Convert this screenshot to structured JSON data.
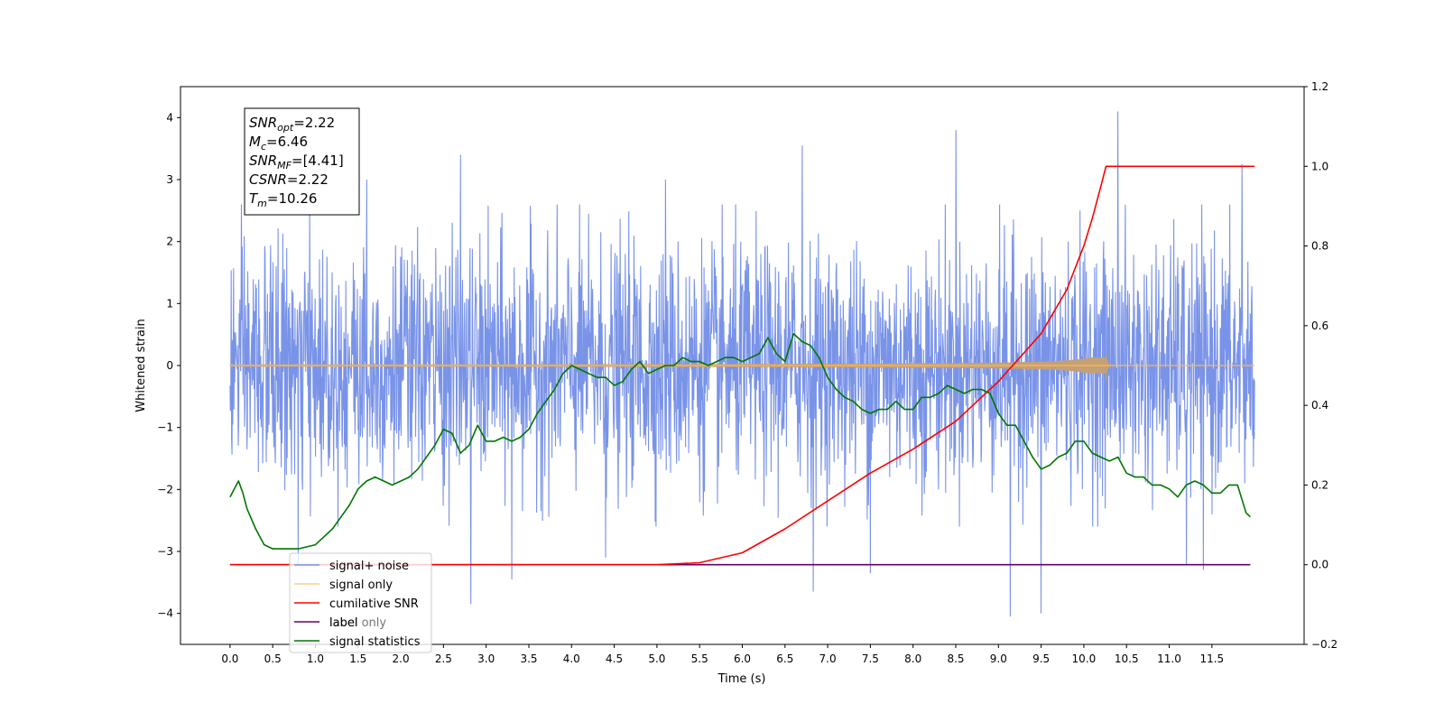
{
  "chart_data": {
    "type": "line",
    "xlabel": "Time (s)",
    "ylabel": "Whitened strain",
    "xlim": [
      -0.58,
      12.58
    ],
    "ylim": [
      -4.5,
      4.5
    ],
    "y2lim": [
      -0.2,
      1.2
    ],
    "x_ticks": [
      "0.0",
      "0.5",
      "1.0",
      "1.5",
      "2.0",
      "2.5",
      "3.0",
      "3.5",
      "4.0",
      "4.5",
      "5.0",
      "5.5",
      "6.0",
      "6.5",
      "7.0",
      "7.5",
      "8.0",
      "8.5",
      "9.0",
      "9.5",
      "10.0",
      "10.5",
      "11.0",
      "11.5"
    ],
    "y_ticks": [
      "−4",
      "−3",
      "−2",
      "−1",
      "0",
      "1",
      "2",
      "3",
      "4"
    ],
    "y2_ticks": [
      "−0.2",
      "0.0",
      "0.2",
      "0.4",
      "0.6",
      "0.8",
      "1.0",
      "1.2"
    ],
    "annotation": {
      "lines": [
        {
          "base": "SNR",
          "sub": "opt",
          "text": "=2.22"
        },
        {
          "base": "M",
          "sub": "c",
          "text": "=6.46"
        },
        {
          "base": "SNR",
          "sub": "MF",
          "text": "=[4.41]"
        },
        {
          "base": "CSNR",
          "sub": "",
          "text": "=2.22"
        },
        {
          "base": "T",
          "sub": "m",
          "text": "=10.26"
        }
      ]
    },
    "legend_position": "lower-left",
    "series": [
      {
        "name": "signal+ noise",
        "color": "#7993e8",
        "axis": "left",
        "kind": "noise",
        "t_range": [
          0,
          12
        ],
        "envelope": [
          -2.0,
          2.0
        ],
        "peaks": [
          [
            0.8,
            -3.2
          ],
          [
            2.82,
            -3.85
          ],
          [
            3.3,
            -3.45
          ],
          [
            4.4,
            -3.1
          ],
          [
            6.7,
            3.55
          ],
          [
            6.83,
            -3.65
          ],
          [
            7.5,
            -3.35
          ],
          [
            8.5,
            3.8
          ],
          [
            9.14,
            -4.05
          ],
          [
            9.5,
            -4.0
          ],
          [
            10.4,
            4.1
          ],
          [
            11.85,
            3.25
          ],
          [
            2.7,
            3.4
          ],
          [
            1.6,
            3.0
          ],
          [
            5.1,
            3.0
          ],
          [
            11.2,
            -3.2
          ],
          [
            11.4,
            -3.3
          ]
        ]
      },
      {
        "name": "signal only",
        "color": "#ffb84d",
        "axis": "left",
        "kind": "chirp",
        "t_range": [
          0,
          12
        ],
        "merger_time": 10.26,
        "peak_amplitude": 0.25
      },
      {
        "name": "cumilative SNR",
        "color": "#ff0000",
        "axis": "right",
        "x": [
          0,
          5.0,
          5.5,
          6.0,
          6.5,
          7.0,
          7.5,
          8.0,
          8.5,
          9.0,
          9.5,
          9.8,
          10.0,
          10.1,
          10.2,
          10.26,
          12.0
        ],
        "y": [
          0,
          0,
          0.005,
          0.03,
          0.09,
          0.16,
          0.23,
          0.29,
          0.36,
          0.46,
          0.58,
          0.69,
          0.8,
          0.87,
          0.95,
          1.0,
          1.0
        ]
      },
      {
        "name": "label",
        "color": "#660066",
        "axis": "right",
        "x": [
          0,
          11.95
        ],
        "y": [
          0,
          0
        ]
      },
      {
        "name": "label only",
        "color": "#ffb84d",
        "axis": "right",
        "kind": "legend-only"
      },
      {
        "name": "signal statistics",
        "color": "#007700",
        "axis": "right",
        "x": [
          0,
          0.05,
          0.1,
          0.15,
          0.2,
          0.3,
          0.4,
          0.5,
          0.6,
          0.7,
          0.8,
          0.9,
          1.0,
          1.1,
          1.2,
          1.3,
          1.4,
          1.5,
          1.6,
          1.7,
          1.8,
          1.9,
          2.0,
          2.1,
          2.2,
          2.3,
          2.4,
          2.5,
          2.6,
          2.7,
          2.8,
          2.9,
          3.0,
          3.1,
          3.2,
          3.3,
          3.4,
          3.5,
          3.6,
          3.7,
          3.8,
          3.9,
          4.0,
          4.1,
          4.2,
          4.3,
          4.4,
          4.5,
          4.6,
          4.7,
          4.8,
          4.9,
          5.0,
          5.1,
          5.2,
          5.3,
          5.4,
          5.5,
          5.6,
          5.7,
          5.8,
          5.9,
          6.0,
          6.1,
          6.2,
          6.3,
          6.4,
          6.5,
          6.6,
          6.7,
          6.8,
          6.9,
          7.0,
          7.1,
          7.2,
          7.3,
          7.4,
          7.5,
          7.6,
          7.7,
          7.8,
          7.9,
          8.0,
          8.1,
          8.2,
          8.3,
          8.4,
          8.5,
          8.6,
          8.7,
          8.8,
          8.9,
          9.0,
          9.1,
          9.2,
          9.3,
          9.4,
          9.5,
          9.6,
          9.7,
          9.8,
          9.9,
          10.0,
          10.1,
          10.2,
          10.3,
          10.4,
          10.5,
          10.6,
          10.7,
          10.8,
          10.9,
          11.0,
          11.1,
          11.2,
          11.3,
          11.4,
          11.5,
          11.6,
          11.7,
          11.8,
          11.9,
          11.95
        ],
        "y": [
          0.17,
          0.19,
          0.21,
          0.18,
          0.14,
          0.09,
          0.05,
          0.04,
          0.04,
          0.04,
          0.04,
          0.045,
          0.05,
          0.07,
          0.09,
          0.12,
          0.15,
          0.19,
          0.21,
          0.22,
          0.21,
          0.2,
          0.21,
          0.22,
          0.24,
          0.27,
          0.3,
          0.34,
          0.33,
          0.28,
          0.3,
          0.35,
          0.31,
          0.31,
          0.32,
          0.31,
          0.32,
          0.34,
          0.38,
          0.41,
          0.44,
          0.48,
          0.5,
          0.49,
          0.48,
          0.47,
          0.47,
          0.45,
          0.46,
          0.49,
          0.51,
          0.48,
          0.49,
          0.5,
          0.5,
          0.52,
          0.51,
          0.51,
          0.5,
          0.51,
          0.52,
          0.52,
          0.51,
          0.52,
          0.53,
          0.57,
          0.53,
          0.51,
          0.58,
          0.56,
          0.55,
          0.52,
          0.47,
          0.44,
          0.42,
          0.41,
          0.39,
          0.38,
          0.39,
          0.39,
          0.41,
          0.39,
          0.39,
          0.42,
          0.42,
          0.43,
          0.45,
          0.44,
          0.43,
          0.44,
          0.44,
          0.43,
          0.38,
          0.35,
          0.35,
          0.31,
          0.27,
          0.24,
          0.25,
          0.27,
          0.28,
          0.31,
          0.31,
          0.28,
          0.27,
          0.26,
          0.27,
          0.23,
          0.22,
          0.22,
          0.2,
          0.2,
          0.19,
          0.17,
          0.2,
          0.21,
          0.2,
          0.18,
          0.18,
          0.2,
          0.2,
          0.13,
          0.12
        ]
      }
    ]
  }
}
